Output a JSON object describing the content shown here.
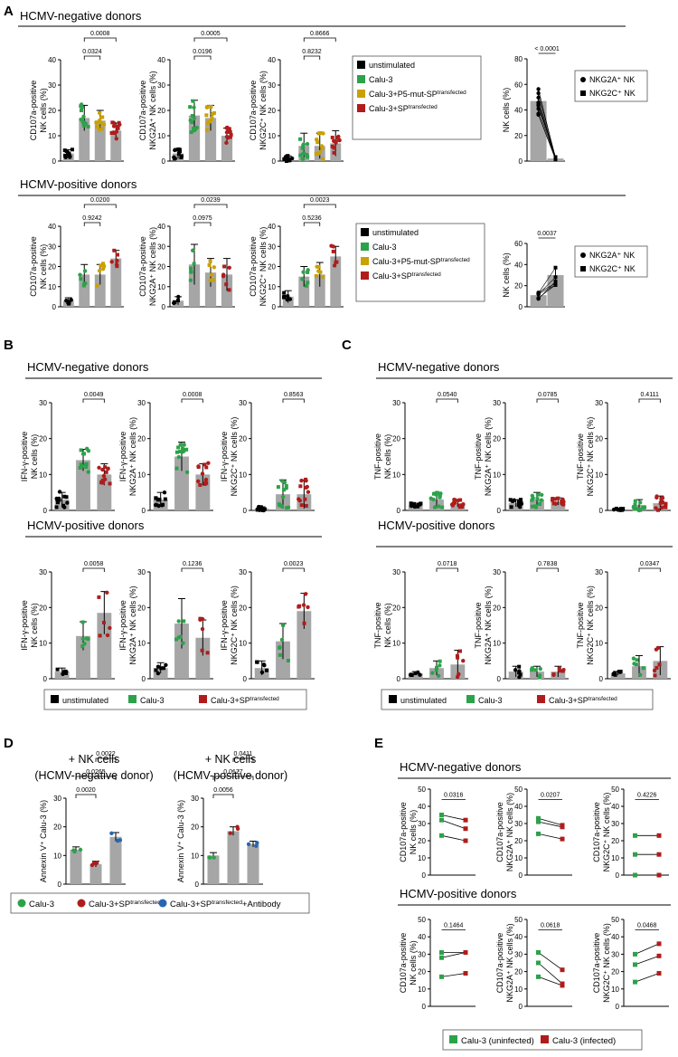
{
  "colors": {
    "unstim": "#000000",
    "calu": "#2ca24a",
    "p5": "#c9a100",
    "sp": "#b01c1c",
    "ab": "#2766b3",
    "bar": "#a6a6a6"
  },
  "panels": {
    "A": "A",
    "B": "B",
    "C": "C",
    "D": "D",
    "E": "E"
  },
  "headers": {
    "neg": "HCMV-negative donors",
    "pos": "HCMV-positive donors"
  },
  "legendA": [
    {
      "label": "unstimulated",
      "sup": "",
      "color": "#000000"
    },
    {
      "label": "Calu-3",
      "sup": "",
      "color": "#2ca24a"
    },
    {
      "label": "Calu-3+P5-mut-SP",
      "sup": "transfected",
      "color": "#c9a100"
    },
    {
      "label": "Calu-3+SP",
      "sup": "transfected",
      "color": "#b01c1c"
    }
  ],
  "legendNK": [
    {
      "label": "NKG2A⁺ NK",
      "marker": "circle"
    },
    {
      "label": "NKG2C⁺ NK",
      "marker": "square"
    }
  ],
  "legendBC": [
    {
      "label": "unstimulated",
      "sup": "",
      "color": "#000000"
    },
    {
      "label": "Calu-3",
      "sup": "",
      "color": "#2ca24a"
    },
    {
      "label": "Calu-3+SP",
      "sup": "transfected",
      "color": "#b01c1c"
    }
  ],
  "legendD": [
    {
      "label": "Calu-3",
      "sup": "",
      "suffix": "",
      "color": "#2ca24a"
    },
    {
      "label": "Calu-3+SP",
      "sup": "transfected",
      "suffix": "",
      "color": "#b01c1c"
    },
    {
      "label": "Calu-3+SP",
      "sup": "transfected",
      "suffix": "+Antibody",
      "color": "#2766b3"
    }
  ],
  "legendE": [
    {
      "label": "Calu-3 (uninfected)",
      "color": "#2ca24a"
    },
    {
      "label": "Calu-3 (infected)",
      "color": "#b01c1c"
    }
  ],
  "titlesD": [
    [
      "+ NK cells",
      "(HCMV-negative donor)"
    ],
    [
      "+ NK cells",
      "(HCMV-positive donor)"
    ]
  ],
  "chart_data": [
    {
      "id": "A-neg-1",
      "type": "bar",
      "ylabel": [
        "CD107a-positive",
        "NK cells (%)"
      ],
      "ylim": [
        0,
        40
      ],
      "ticks": [
        0,
        10,
        20,
        30,
        40
      ],
      "categories": [
        "unstimulated",
        "Calu-3",
        "Calu-3+P5-mut-SP",
        "Calu-3+SP"
      ],
      "values": [
        3,
        17,
        16,
        12
      ],
      "errors": [
        1.5,
        5,
        4,
        3
      ],
      "pvalues": [
        {
          "a": 1,
          "b": 2,
          "text": "0.0324"
        },
        {
          "a": 1,
          "b": 3,
          "text": "0.0008"
        }
      ]
    },
    {
      "id": "A-neg-2",
      "type": "bar",
      "ylabel": [
        "CD107a-positive",
        "NKG2A⁺ NK cells (%)"
      ],
      "ylim": [
        0,
        40
      ],
      "ticks": [
        0,
        10,
        20,
        30,
        40
      ],
      "categories": [
        "unstimulated",
        "Calu-3",
        "Calu-3+P5-mut-SP",
        "Calu-3+SP"
      ],
      "values": [
        3,
        18,
        17,
        10
      ],
      "errors": [
        2,
        6,
        5,
        3
      ],
      "pvalues": [
        {
          "a": 1,
          "b": 2,
          "text": "0.0196"
        },
        {
          "a": 1,
          "b": 3,
          "text": "0.0005"
        }
      ]
    },
    {
      "id": "A-neg-3",
      "type": "bar",
      "ylabel": [
        "CD107a-positive",
        "NKG2C⁺ NK cells (%)"
      ],
      "ylim": [
        0,
        40
      ],
      "ticks": [
        0,
        10,
        20,
        30,
        40
      ],
      "categories": [
        "unstimulated",
        "Calu-3",
        "Calu-3+P5-mut-SP",
        "Calu-3+SP"
      ],
      "values": [
        1,
        6,
        6,
        7
      ],
      "errors": [
        1,
        5,
        5,
        5
      ],
      "pvalues": [
        {
          "a": 1,
          "b": 2,
          "text": "0.8232"
        },
        {
          "a": 1,
          "b": 3,
          "text": "0.8666"
        }
      ]
    },
    {
      "id": "A-neg-NK",
      "type": "bar",
      "ylabel": [
        "NK cells (%)"
      ],
      "ylim": [
        0,
        80
      ],
      "ticks": [
        0,
        20,
        40,
        60,
        80
      ],
      "categories": [
        "NKG2A⁺ NK",
        "NKG2C⁺ NK"
      ],
      "values": [
        47,
        2
      ],
      "errors": [
        10,
        1
      ],
      "pvalues": [
        {
          "a": 0,
          "b": 1,
          "text": "< 0.0001"
        }
      ]
    },
    {
      "id": "A-pos-1",
      "type": "bar",
      "ylabel": [
        "CD107a-positive",
        "NK cells (%)"
      ],
      "ylim": [
        0,
        40
      ],
      "ticks": [
        0,
        10,
        20,
        30,
        40
      ],
      "categories": [
        "unstimulated",
        "Calu-3",
        "Calu-3+P5-mut-SP",
        "Calu-3+SP"
      ],
      "values": [
        3,
        16,
        16,
        24
      ],
      "errors": [
        1.5,
        5,
        5,
        4
      ],
      "pvalues": [
        {
          "a": 1,
          "b": 2,
          "text": "0.9242"
        },
        {
          "a": 1,
          "b": 3,
          "text": "0.0200"
        }
      ]
    },
    {
      "id": "A-pos-2",
      "type": "bar",
      "ylabel": [
        "CD107a-positive",
        "NKG2A⁺ NK cells (%)"
      ],
      "ylim": [
        0,
        40
      ],
      "ticks": [
        0,
        10,
        20,
        30,
        40
      ],
      "categories": [
        "unstimulated",
        "Calu-3",
        "Calu-3+P5-mut-SP",
        "Calu-3+SP"
      ],
      "values": [
        3,
        21,
        17,
        16
      ],
      "errors": [
        2,
        10,
        7,
        8
      ],
      "pvalues": [
        {
          "a": 1,
          "b": 2,
          "text": "0.0975"
        },
        {
          "a": 1,
          "b": 3,
          "text": "0.0239"
        }
      ]
    },
    {
      "id": "A-pos-3",
      "type": "bar",
      "ylabel": [
        "CD107a-positive",
        "NKG2C⁺ NK cells (%)"
      ],
      "ylim": [
        0,
        40
      ],
      "ticks": [
        0,
        10,
        20,
        30,
        40
      ],
      "categories": [
        "unstimulated",
        "Calu-3",
        "Calu-3+P5-mut-SP",
        "Calu-3+SP"
      ],
      "values": [
        5,
        15,
        16,
        25
      ],
      "errors": [
        3,
        5,
        6,
        5
      ],
      "pvalues": [
        {
          "a": 1,
          "b": 2,
          "text": "0.5236"
        },
        {
          "a": 1,
          "b": 3,
          "text": "0.0023"
        }
      ]
    },
    {
      "id": "A-pos-NK",
      "type": "bar",
      "ylabel": [
        "NK cells (%)"
      ],
      "ylim": [
        0,
        60
      ],
      "ticks": [
        0,
        20,
        40,
        60
      ],
      "categories": [
        "NKG2A⁺ NK",
        "NKG2C⁺ NK"
      ],
      "values": [
        11,
        30
      ],
      "errors": [
        3,
        8
      ],
      "pvalues": [
        {
          "a": 0,
          "b": 1,
          "text": "0.0037"
        }
      ]
    },
    {
      "id": "B-neg-1",
      "type": "bar",
      "ylabel": [
        "IFN-γ-positive",
        "NK cells (%)"
      ],
      "ylim": [
        0,
        30
      ],
      "ticks": [
        0,
        10,
        20,
        30
      ],
      "categories": [
        "unstimulated",
        "Calu-3",
        "Calu-3+SP"
      ],
      "values": [
        3,
        14,
        10
      ],
      "errors": [
        2,
        3,
        3
      ],
      "pvalues": [
        {
          "a": 1,
          "b": 2,
          "text": "0.0049"
        }
      ]
    },
    {
      "id": "B-neg-2",
      "type": "bar",
      "ylabel": [
        "IFN-γ-positive",
        "NKG2A⁺ NK cells (%)"
      ],
      "ylim": [
        0,
        30
      ],
      "ticks": [
        0,
        10,
        20,
        30
      ],
      "categories": [
        "unstimulated",
        "Calu-3",
        "Calu-3+SP"
      ],
      "values": [
        3,
        15,
        10
      ],
      "errors": [
        2,
        4,
        3
      ],
      "pvalues": [
        {
          "a": 1,
          "b": 2,
          "text": "0.0008"
        }
      ]
    },
    {
      "id": "B-neg-3",
      "type": "bar",
      "ylabel": [
        "IFN-γ-positive",
        "NKG2C⁺ NK cells (%)"
      ],
      "ylim": [
        0,
        30
      ],
      "ticks": [
        0,
        10,
        20,
        30
      ],
      "categories": [
        "unstimulated",
        "Calu-3",
        "Calu-3+SP"
      ],
      "values": [
        0.5,
        4.5,
        4.5
      ],
      "errors": [
        0.5,
        4,
        4
      ],
      "pvalues": [
        {
          "a": 1,
          "b": 2,
          "text": "0.8563"
        }
      ]
    },
    {
      "id": "B-pos-1",
      "type": "bar",
      "ylabel": [
        "IFN-γ-positive",
        "NK cells (%)"
      ],
      "ylim": [
        0,
        30
      ],
      "ticks": [
        0,
        10,
        20,
        30
      ],
      "categories": [
        "unstimulated",
        "Calu-3",
        "Calu-3+SP"
      ],
      "values": [
        2,
        12,
        18.5
      ],
      "errors": [
        1,
        4,
        6
      ],
      "pvalues": [
        {
          "a": 1,
          "b": 2,
          "text": "0.0058"
        }
      ]
    },
    {
      "id": "B-pos-2",
      "type": "bar",
      "ylabel": [
        "IFN-γ-positive",
        "NKG2A⁺ NK cells (%)"
      ],
      "ylim": [
        0,
        30
      ],
      "ticks": [
        0,
        10,
        20,
        30
      ],
      "categories": [
        "unstimulated",
        "Calu-3",
        "Calu-3+SP"
      ],
      "values": [
        3,
        15.5,
        11.5
      ],
      "errors": [
        1.5,
        7,
        5
      ],
      "pvalues": [
        {
          "a": 1,
          "b": 2,
          "text": "0.1236"
        }
      ]
    },
    {
      "id": "B-pos-3",
      "type": "bar",
      "ylabel": [
        "IFN-γ-positive",
        "NKG2C⁺ NK cells (%)"
      ],
      "ylim": [
        0,
        30
      ],
      "ticks": [
        0,
        10,
        20,
        30
      ],
      "categories": [
        "unstimulated",
        "Calu-3",
        "Calu-3+SP"
      ],
      "values": [
        3,
        10.5,
        19
      ],
      "errors": [
        2,
        5,
        5
      ],
      "pvalues": [
        {
          "a": 1,
          "b": 2,
          "text": "0.0023"
        }
      ]
    },
    {
      "id": "C-neg-1",
      "type": "bar",
      "ylabel": [
        "TNF-positive",
        "NK cells (%)"
      ],
      "ylim": [
        0,
        30
      ],
      "ticks": [
        0,
        10,
        20,
        30
      ],
      "categories": [
        "unstimulated",
        "Calu-3",
        "Calu-3+SP"
      ],
      "values": [
        1.5,
        3,
        2
      ],
      "errors": [
        0.5,
        2,
        1
      ],
      "pvalues": [
        {
          "a": 1,
          "b": 2,
          "text": "0.0540"
        }
      ]
    },
    {
      "id": "C-neg-2",
      "type": "bar",
      "ylabel": [
        "TNF-positive",
        "NKG2A⁺ NK cells (%)"
      ],
      "ylim": [
        0,
        30
      ],
      "ticks": [
        0,
        10,
        20,
        30
      ],
      "categories": [
        "unstimulated",
        "Calu-3",
        "Calu-3+SP"
      ],
      "values": [
        2,
        3,
        2.5
      ],
      "errors": [
        1,
        2,
        1
      ],
      "pvalues": [
        {
          "a": 1,
          "b": 2,
          "text": "0.0785"
        }
      ]
    },
    {
      "id": "C-neg-3",
      "type": "bar",
      "ylabel": [
        "TNF-positive",
        "NKG2C⁺ NK cells (%)"
      ],
      "ylim": [
        0,
        30
      ],
      "ticks": [
        0,
        10,
        20,
        30
      ],
      "categories": [
        "unstimulated",
        "Calu-3",
        "Calu-3+SP"
      ],
      "values": [
        0.3,
        1.5,
        2
      ],
      "errors": [
        0.3,
        1.5,
        2
      ],
      "pvalues": [
        {
          "a": 1,
          "b": 2,
          "text": "0.4111"
        }
      ]
    },
    {
      "id": "C-pos-1",
      "type": "bar",
      "ylabel": [
        "TNF-positive",
        "NK cells (%)"
      ],
      "ylim": [
        0,
        30
      ],
      "ticks": [
        0,
        10,
        20,
        30
      ],
      "categories": [
        "unstimulated",
        "Calu-3",
        "Calu-3+SP"
      ],
      "values": [
        1.5,
        3,
        4
      ],
      "errors": [
        0.5,
        2,
        4
      ],
      "pvalues": [
        {
          "a": 1,
          "b": 2,
          "text": "0.0718"
        }
      ]
    },
    {
      "id": "C-pos-2",
      "type": "bar",
      "ylabel": [
        "TNF-positive",
        "NKG2A⁺ NK cells (%)"
      ],
      "ylim": [
        0,
        30
      ],
      "ticks": [
        0,
        10,
        20,
        30
      ],
      "categories": [
        "unstimulated",
        "Calu-3",
        "Calu-3+SP"
      ],
      "values": [
        2,
        2,
        2
      ],
      "errors": [
        1.5,
        1.5,
        1.5
      ],
      "pvalues": [
        {
          "a": 1,
          "b": 2,
          "text": "0.7838"
        }
      ]
    },
    {
      "id": "C-pos-3",
      "type": "bar",
      "ylabel": [
        "TNF-positive",
        "NKG2C⁺ NK cells (%)"
      ],
      "ylim": [
        0,
        30
      ],
      "ticks": [
        0,
        10,
        20,
        30
      ],
      "categories": [
        "unstimulated",
        "Calu-3",
        "Calu-3+SP"
      ],
      "values": [
        1.5,
        3.5,
        5
      ],
      "errors": [
        0.5,
        3,
        4
      ],
      "pvalues": [
        {
          "a": 1,
          "b": 2,
          "text": "0.0347"
        }
      ]
    },
    {
      "id": "D-1",
      "type": "bar",
      "ylabel": [
        "Annexin V⁺ Calu-3 (%)"
      ],
      "ylim": [
        0,
        30
      ],
      "ticks": [
        0,
        10,
        20,
        30
      ],
      "categories": [
        "Calu-3",
        "Calu-3+SPtransfected",
        "Calu-3+SPtransfected+Antibody"
      ],
      "values": [
        12,
        7,
        16.5
      ],
      "errors": [
        1,
        1,
        1.5
      ],
      "pvalues": [
        {
          "a": 0,
          "b": 1,
          "text": "0.0020"
        },
        {
          "a": 0,
          "b": 2,
          "text": "0.0265"
        },
        {
          "a": 1,
          "b": 2,
          "text": "0.0022"
        }
      ]
    },
    {
      "id": "D-2",
      "type": "bar",
      "ylabel": [
        "Annexin V⁺ Calu-3 (%)"
      ],
      "ylim": [
        0,
        30
      ],
      "ticks": [
        0,
        10,
        20,
        30
      ],
      "categories": [
        "Calu-3",
        "Calu-3+SPtransfected",
        "Calu-3+SPtransfected+Antibody"
      ],
      "values": [
        10,
        18.5,
        14
      ],
      "errors": [
        1,
        1.5,
        1
      ],
      "pvalues": [
        {
          "a": 0,
          "b": 1,
          "text": "0.0056"
        },
        {
          "a": 0,
          "b": 2,
          "text": "0.0177"
        },
        {
          "a": 1,
          "b": 2,
          "text": "0.0411"
        }
      ]
    },
    {
      "id": "E-neg-1",
      "type": "line",
      "ylabel": [
        "CD107a-positive",
        "NK cells (%)"
      ],
      "ylim": [
        0,
        50
      ],
      "ticks": [
        0,
        10,
        20,
        30,
        40,
        50
      ],
      "pairs": [
        [
          35,
          32
        ],
        [
          32,
          27
        ],
        [
          23,
          20
        ]
      ],
      "pvalue": "0.0316"
    },
    {
      "id": "E-neg-2",
      "type": "line",
      "ylabel": [
        "CD107a-positive",
        "NKG2A⁺ NK cells (%)"
      ],
      "ylim": [
        0,
        50
      ],
      "ticks": [
        0,
        10,
        20,
        30,
        40,
        50
      ],
      "pairs": [
        [
          33,
          29
        ],
        [
          31,
          28
        ],
        [
          24,
          21
        ]
      ],
      "pvalue": "0.0207"
    },
    {
      "id": "E-neg-3",
      "type": "line",
      "ylabel": [
        "CD107a-positive",
        "NKG2C⁺ NK cells (%)"
      ],
      "ylim": [
        0,
        50
      ],
      "ticks": [
        0,
        10,
        20,
        30,
        40,
        50
      ],
      "pairs": [
        [
          23,
          23
        ],
        [
          12,
          12
        ],
        [
          0,
          0
        ]
      ],
      "pvalue": "0.4226"
    },
    {
      "id": "E-pos-1",
      "type": "line",
      "ylabel": [
        "CD107a-positive",
        "NK cells (%)"
      ],
      "ylim": [
        0,
        50
      ],
      "ticks": [
        0,
        10,
        20,
        30,
        40,
        50
      ],
      "pairs": [
        [
          31,
          31
        ],
        [
          28,
          31
        ],
        [
          17,
          19
        ]
      ],
      "pvalue": "0.1464"
    },
    {
      "id": "E-pos-2",
      "type": "line",
      "ylabel": [
        "CD107a-positive",
        "NKG2A⁺ NK cells (%)"
      ],
      "ylim": [
        0,
        50
      ],
      "ticks": [
        0,
        10,
        20,
        30,
        40,
        50
      ],
      "pairs": [
        [
          31,
          21
        ],
        [
          25,
          13
        ],
        [
          17,
          12
        ]
      ],
      "pvalue": "0.0618"
    },
    {
      "id": "E-pos-3",
      "type": "line",
      "ylabel": [
        "CD107a-positive",
        "NKG2C⁺ NK cells (%)"
      ],
      "ylim": [
        0,
        50
      ],
      "ticks": [
        0,
        10,
        20,
        30,
        40,
        50
      ],
      "pairs": [
        [
          30,
          36
        ],
        [
          24,
          29
        ],
        [
          14,
          19
        ]
      ],
      "pvalue": "0.0468"
    }
  ]
}
